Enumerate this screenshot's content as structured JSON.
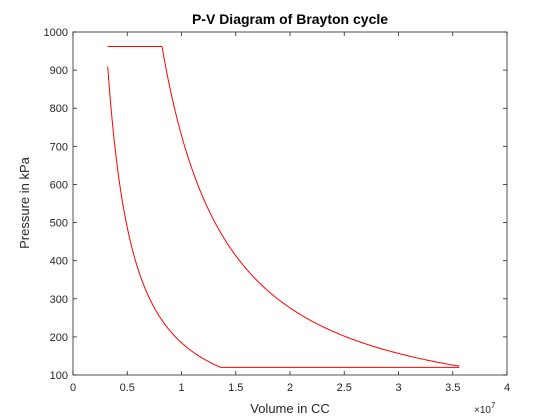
{
  "chart_data": {
    "type": "line",
    "title": "P-V Diagram of Brayton cycle",
    "xlabel": "Volume in CC",
    "ylabel": "Pressure in kPa",
    "x_multiplier": "×10",
    "x_multiplier_exp": "7",
    "xlim": [
      0,
      4
    ],
    "ylim": [
      100,
      1000
    ],
    "x_ticks": [
      "0",
      "0.5",
      "1",
      "1.5",
      "2",
      "2.5",
      "3",
      "3.5",
      "4"
    ],
    "y_ticks": [
      "100",
      "200",
      "300",
      "400",
      "500",
      "600",
      "700",
      "800",
      "900",
      "1000"
    ],
    "grid": false,
    "box": true,
    "line_color": "#ff0000",
    "axis_color": "#262626",
    "series": [
      {
        "segments": [
          {
            "process": "compression",
            "kind": "polytropic",
            "from": [
              1.36,
              120
            ],
            "to": [
              0.32,
              962
            ],
            "gamma": 1.4
          },
          {
            "process": "heat-addition",
            "kind": "isobaric",
            "from": [
              0.32,
              962
            ],
            "to": [
              0.82,
              962
            ]
          },
          {
            "process": "expansion",
            "kind": "polytropic",
            "from": [
              0.82,
              962
            ],
            "to": [
              3.56,
              120
            ],
            "gamma": 1.4
          },
          {
            "process": "heat-rejection",
            "kind": "isobaric",
            "from": [
              3.56,
              120
            ],
            "to": [
              1.36,
              120
            ]
          }
        ]
      }
    ]
  }
}
